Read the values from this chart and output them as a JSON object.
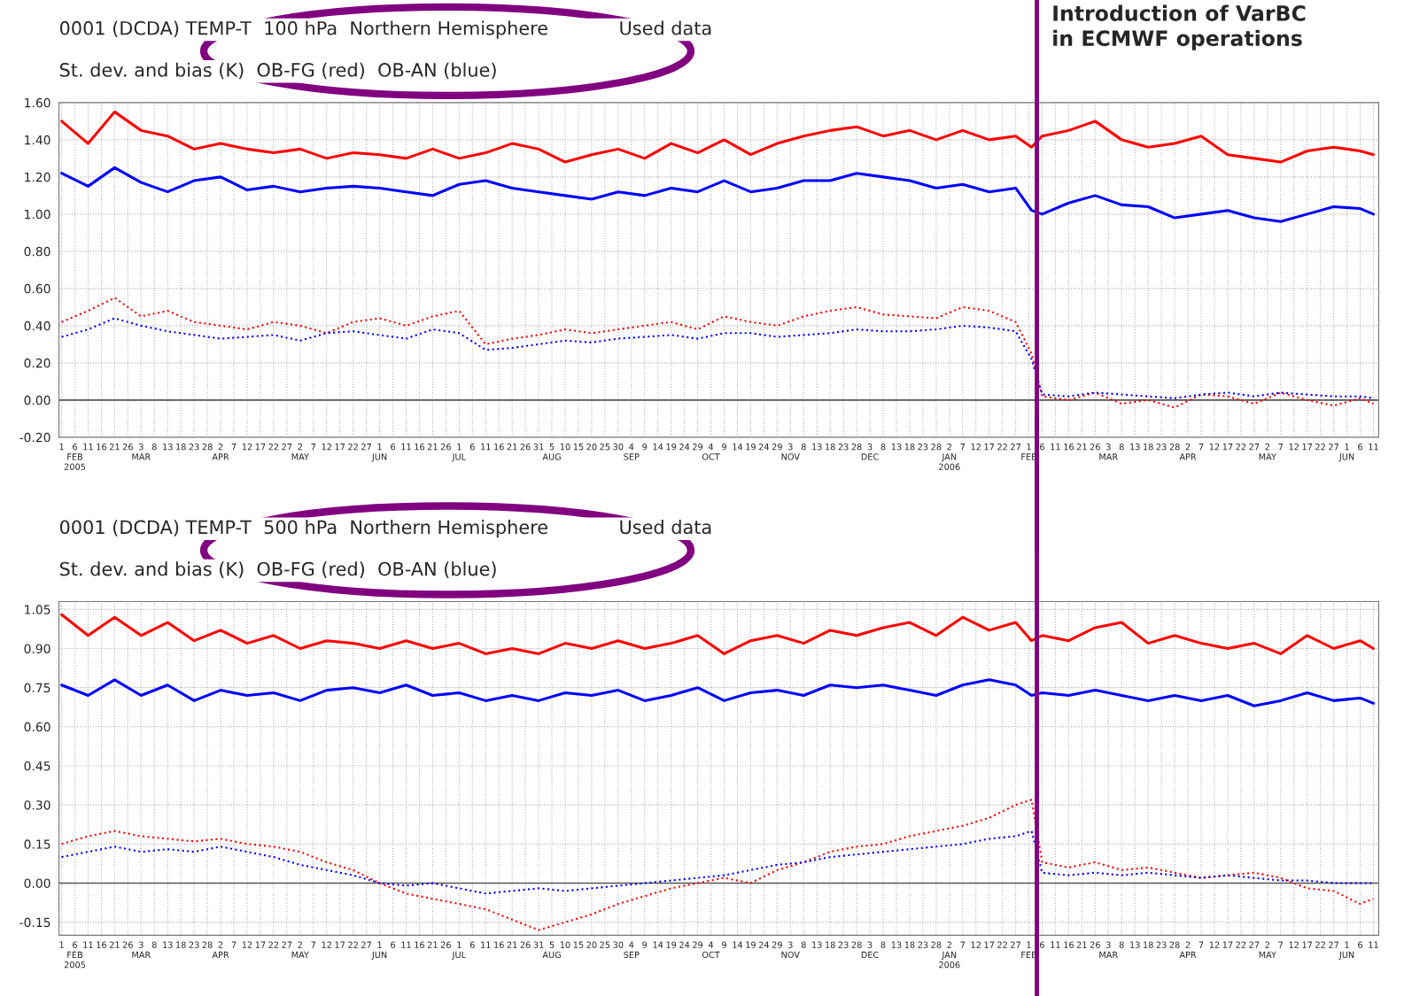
{
  "chart_data": [
    {
      "type": "line",
      "title": "0001 (DCDA) TEMP-T  100 hPa  Northern Hemisphere            Used data",
      "subtitle": "St. dev. and bias (K)  OB-FG (red)  OB-AN (blue)",
      "x": [
        "2005-02-01",
        "2005-02-11",
        "2005-02-21",
        "2005-03-03",
        "2005-03-13",
        "2005-03-23",
        "2005-04-02",
        "2005-04-12",
        "2005-04-22",
        "2005-05-02",
        "2005-05-12",
        "2005-05-22",
        "2005-06-01",
        "2005-06-11",
        "2005-06-21",
        "2005-07-01",
        "2005-07-11",
        "2005-07-21",
        "2005-07-31",
        "2005-08-10",
        "2005-08-20",
        "2005-08-30",
        "2005-09-09",
        "2005-09-19",
        "2005-09-29",
        "2005-10-09",
        "2005-10-19",
        "2005-10-29",
        "2005-11-08",
        "2005-11-18",
        "2005-11-28",
        "2005-12-08",
        "2005-12-18",
        "2005-12-28",
        "2006-01-07",
        "2006-01-17",
        "2006-01-27",
        "2006-02-02",
        "2006-02-06",
        "2006-02-16",
        "2006-02-26",
        "2006-03-08",
        "2006-03-18",
        "2006-03-28",
        "2006-04-07",
        "2006-04-17",
        "2006-04-27",
        "2006-05-07",
        "2006-05-17",
        "2006-05-27",
        "2006-06-06",
        "2006-06-11"
      ],
      "series": [
        {
          "color": "#ff0000",
          "line_style": "solid",
          "values": [
            1.5,
            1.38,
            1.55,
            1.45,
            1.42,
            1.35,
            1.38,
            1.35,
            1.33,
            1.35,
            1.3,
            1.33,
            1.32,
            1.3,
            1.35,
            1.3,
            1.33,
            1.38,
            1.35,
            1.28,
            1.32,
            1.35,
            1.3,
            1.38,
            1.33,
            1.4,
            1.32,
            1.38,
            1.42,
            1.45,
            1.47,
            1.42,
            1.45,
            1.4,
            1.45,
            1.4,
            1.42,
            1.36,
            1.42,
            1.45,
            1.5,
            1.4,
            1.36,
            1.38,
            1.42,
            1.32,
            1.3,
            1.28,
            1.34,
            1.36,
            1.34,
            1.32
          ]
        },
        {
          "color": "#0000ff",
          "line_style": "solid",
          "values": [
            1.22,
            1.15,
            1.25,
            1.17,
            1.12,
            1.18,
            1.2,
            1.13,
            1.15,
            1.12,
            1.14,
            1.15,
            1.14,
            1.12,
            1.1,
            1.16,
            1.18,
            1.14,
            1.12,
            1.1,
            1.08,
            1.12,
            1.1,
            1.14,
            1.12,
            1.18,
            1.12,
            1.14,
            1.18,
            1.18,
            1.22,
            1.2,
            1.18,
            1.14,
            1.16,
            1.12,
            1.14,
            1.02,
            1.0,
            1.06,
            1.1,
            1.05,
            1.04,
            0.98,
            1.0,
            1.02,
            0.98,
            0.96,
            1.0,
            1.04,
            1.03,
            1.0
          ]
        },
        {
          "color": "#ff0000",
          "line_style": "dotted",
          "values": [
            0.42,
            0.48,
            0.55,
            0.45,
            0.48,
            0.42,
            0.4,
            0.38,
            0.42,
            0.4,
            0.36,
            0.42,
            0.44,
            0.4,
            0.45,
            0.48,
            0.3,
            0.33,
            0.35,
            0.38,
            0.36,
            0.38,
            0.4,
            0.42,
            0.38,
            0.45,
            0.42,
            0.4,
            0.45,
            0.48,
            0.5,
            0.46,
            0.45,
            0.44,
            0.5,
            0.48,
            0.42,
            0.25,
            0.02,
            0.0,
            0.04,
            -0.02,
            0.0,
            -0.04,
            0.03,
            0.02,
            -0.02,
            0.04,
            0.0,
            -0.03,
            0.01,
            -0.02
          ]
        },
        {
          "color": "#0000ff",
          "line_style": "dotted",
          "values": [
            0.34,
            0.38,
            0.44,
            0.4,
            0.37,
            0.35,
            0.33,
            0.34,
            0.35,
            0.32,
            0.36,
            0.37,
            0.35,
            0.33,
            0.38,
            0.36,
            0.27,
            0.28,
            0.3,
            0.32,
            0.31,
            0.33,
            0.34,
            0.35,
            0.33,
            0.36,
            0.36,
            0.34,
            0.35,
            0.36,
            0.38,
            0.37,
            0.37,
            0.38,
            0.4,
            0.39,
            0.37,
            0.22,
            0.03,
            0.02,
            0.04,
            0.03,
            0.02,
            0.01,
            0.03,
            0.04,
            0.02,
            0.04,
            0.03,
            0.02,
            0.02,
            0.01
          ]
        }
      ],
      "xlim": [
        "2005-01-31",
        "2006-06-13"
      ],
      "xticks": [
        {
          "value": "2005-02-01",
          "label": "1"
        },
        {
          "value": "2005-02-06",
          "label": "6\nFEB\n2005"
        },
        {
          "value": "2005-02-11",
          "label": "11"
        },
        {
          "value": "2005-02-16",
          "label": "16"
        },
        {
          "value": "2005-02-21",
          "label": "21"
        },
        {
          "value": "2005-02-26",
          "label": "26"
        },
        {
          "value": "2005-03-03",
          "label": "3\nMAR"
        },
        {
          "value": "2005-03-08",
          "label": "8"
        },
        {
          "value": "2005-03-13",
          "label": "13"
        },
        {
          "value": "2005-03-18",
          "label": "18"
        },
        {
          "value": "2005-03-23",
          "label": "23"
        },
        {
          "value": "2005-03-28",
          "label": "28"
        },
        {
          "value": "2005-04-02",
          "label": "2\nAPR"
        },
        {
          "value": "2005-04-07",
          "label": "7"
        },
        {
          "value": "2005-04-12",
          "label": "12"
        },
        {
          "value": "2005-04-17",
          "label": "17"
        },
        {
          "value": "2005-04-22",
          "label": "22"
        },
        {
          "value": "2005-04-27",
          "label": "27"
        },
        {
          "value": "2005-05-02",
          "label": "2\nMAY"
        },
        {
          "value": "2005-05-07",
          "label": "7"
        },
        {
          "value": "2005-05-12",
          "label": "12"
        },
        {
          "value": "2005-05-17",
          "label": "17"
        },
        {
          "value": "2005-05-22",
          "label": "22"
        },
        {
          "value": "2005-05-27",
          "label": "27"
        },
        {
          "value": "2005-06-01",
          "label": "1\nJUN"
        },
        {
          "value": "2005-06-06",
          "label": "6"
        },
        {
          "value": "2005-06-11",
          "label": "11"
        },
        {
          "value": "2005-06-16",
          "label": "16"
        },
        {
          "value": "2005-06-21",
          "label": "21"
        },
        {
          "value": "2005-06-26",
          "label": "26"
        },
        {
          "value": "2005-07-01",
          "label": "1\nJUL"
        },
        {
          "value": "2005-07-06",
          "label": "6"
        },
        {
          "value": "2005-07-11",
          "label": "11"
        },
        {
          "value": "2005-07-16",
          "label": "16"
        },
        {
          "value": "2005-07-21",
          "label": "21"
        },
        {
          "value": "2005-07-26",
          "label": "26"
        },
        {
          "value": "2005-07-31",
          "label": "31"
        },
        {
          "value": "2005-08-05",
          "label": "5\nAUG"
        },
        {
          "value": "2005-08-10",
          "label": "10"
        },
        {
          "value": "2005-08-15",
          "label": "15"
        },
        {
          "value": "2005-08-20",
          "label": "20"
        },
        {
          "value": "2005-08-25",
          "label": "25"
        },
        {
          "value": "2005-08-30",
          "label": "30"
        },
        {
          "value": "2005-09-04",
          "label": "4\nSEP"
        },
        {
          "value": "2005-09-09",
          "label": "9"
        },
        {
          "value": "2005-09-14",
          "label": "14"
        },
        {
          "value": "2005-09-19",
          "label": "19"
        },
        {
          "value": "2005-09-24",
          "label": "24"
        },
        {
          "value": "2005-09-29",
          "label": "29"
        },
        {
          "value": "2005-10-04",
          "label": "4\nOCT"
        },
        {
          "value": "2005-10-09",
          "label": "9"
        },
        {
          "value": "2005-10-14",
          "label": "14"
        },
        {
          "value": "2005-10-19",
          "label": "19"
        },
        {
          "value": "2005-10-24",
          "label": "24"
        },
        {
          "value": "2005-10-29",
          "label": "29"
        },
        {
          "value": "2005-11-03",
          "label": "3\nNOV"
        },
        {
          "value": "2005-11-08",
          "label": "8"
        },
        {
          "value": "2005-11-13",
          "label": "13"
        },
        {
          "value": "2005-11-18",
          "label": "18"
        },
        {
          "value": "2005-11-23",
          "label": "23"
        },
        {
          "value": "2005-11-28",
          "label": "28"
        },
        {
          "value": "2005-12-03",
          "label": "3\nDEC"
        },
        {
          "value": "2005-12-08",
          "label": "8"
        },
        {
          "value": "2005-12-13",
          "label": "13"
        },
        {
          "value": "2005-12-18",
          "label": "18"
        },
        {
          "value": "2005-12-23",
          "label": "23"
        },
        {
          "value": "2005-12-28",
          "label": "28"
        },
        {
          "value": "2006-01-02",
          "label": "2\nJAN\n2006"
        },
        {
          "value": "2006-01-07",
          "label": "7"
        },
        {
          "value": "2006-01-12",
          "label": "12"
        },
        {
          "value": "2006-01-17",
          "label": "17"
        },
        {
          "value": "2006-01-22",
          "label": "22"
        },
        {
          "value": "2006-01-27",
          "label": "27"
        },
        {
          "value": "2006-02-01",
          "label": "1\nFEB"
        },
        {
          "value": "2006-02-06",
          "label": "6"
        },
        {
          "value": "2006-02-11",
          "label": "11"
        },
        {
          "value": "2006-02-16",
          "label": "16"
        },
        {
          "value": "2006-02-21",
          "label": "21"
        },
        {
          "value": "2006-02-26",
          "label": "26"
        },
        {
          "value": "2006-03-03",
          "label": "3\nMAR"
        },
        {
          "value": "2006-03-08",
          "label": "8"
        },
        {
          "value": "2006-03-13",
          "label": "13"
        },
        {
          "value": "2006-03-18",
          "label": "18"
        },
        {
          "value": "2006-03-23",
          "label": "23"
        },
        {
          "value": "2006-03-28",
          "label": "28"
        },
        {
          "value": "2006-04-02",
          "label": "2\nAPR"
        },
        {
          "value": "2006-04-07",
          "label": "7"
        },
        {
          "value": "2006-04-12",
          "label": "12"
        },
        {
          "value": "2006-04-17",
          "label": "17"
        },
        {
          "value": "2006-04-22",
          "label": "22"
        },
        {
          "value": "2006-04-27",
          "label": "27"
        },
        {
          "value": "2006-05-02",
          "label": "2\nMAY"
        },
        {
          "value": "2006-05-07",
          "label": "7"
        },
        {
          "value": "2006-05-12",
          "label": "12"
        },
        {
          "value": "2006-05-17",
          "label": "17"
        },
        {
          "value": "2006-05-22",
          "label": "22"
        },
        {
          "value": "2006-05-27",
          "label": "27"
        },
        {
          "value": "2006-06-01",
          "label": "1\nJUN"
        },
        {
          "value": "2006-06-06",
          "label": "6"
        },
        {
          "value": "2006-06-11",
          "label": "11"
        }
      ],
      "ylim": [
        -0.2,
        1.6
      ],
      "yticks": [
        {
          "value": -0.2,
          "label": "-0.20"
        },
        {
          "value": 0,
          "label": "0.00"
        },
        {
          "value": 0.2,
          "label": "0.20"
        },
        {
          "value": 0.4,
          "label": "0.40"
        },
        {
          "value": 0.6,
          "label": "0.60"
        },
        {
          "value": 0.8,
          "label": "0.80"
        },
        {
          "value": 1.0,
          "label": "1.00"
        },
        {
          "value": 1.2,
          "label": "1.20"
        },
        {
          "value": 1.4,
          "label": "1.40"
        },
        {
          "value": 1.6,
          "label": "1.60"
        }
      ],
      "grid": true,
      "ref_lines": [
        {
          "axis": "y",
          "value": 0,
          "color": "#555555",
          "line_style": "solid"
        },
        {
          "axis": "x",
          "value": "2006-02-04",
          "label": "Introduction of VarBC\nin ECMWF operations",
          "color": "#800080",
          "line_style": "solid"
        }
      ]
    },
    {
      "type": "line",
      "title": "0001 (DCDA) TEMP-T  500 hPa  Northern Hemisphere            Used data",
      "subtitle": "St. dev. and bias (K)  OB-FG (red)  OB-AN (blue)",
      "x": [
        "2005-02-01",
        "2005-02-11",
        "2005-02-21",
        "2005-03-03",
        "2005-03-13",
        "2005-03-23",
        "2005-04-02",
        "2005-04-12",
        "2005-04-22",
        "2005-05-02",
        "2005-05-12",
        "2005-05-22",
        "2005-06-01",
        "2005-06-11",
        "2005-06-21",
        "2005-07-01",
        "2005-07-11",
        "2005-07-21",
        "2005-07-31",
        "2005-08-10",
        "2005-08-20",
        "2005-08-30",
        "2005-09-09",
        "2005-09-19",
        "2005-09-29",
        "2005-10-09",
        "2005-10-19",
        "2005-10-29",
        "2005-11-08",
        "2005-11-18",
        "2005-11-28",
        "2005-12-08",
        "2005-12-18",
        "2005-12-28",
        "2006-01-07",
        "2006-01-17",
        "2006-01-27",
        "2006-02-02",
        "2006-02-06",
        "2006-02-16",
        "2006-02-26",
        "2006-03-08",
        "2006-03-18",
        "2006-03-28",
        "2006-04-07",
        "2006-04-17",
        "2006-04-27",
        "2006-05-07",
        "2006-05-17",
        "2006-05-27",
        "2006-06-06",
        "2006-06-11"
      ],
      "series": [
        {
          "color": "#ff0000",
          "line_style": "solid",
          "values": [
            1.03,
            0.95,
            1.02,
            0.95,
            1.0,
            0.93,
            0.97,
            0.92,
            0.95,
            0.9,
            0.93,
            0.92,
            0.9,
            0.93,
            0.9,
            0.92,
            0.88,
            0.9,
            0.88,
            0.92,
            0.9,
            0.93,
            0.9,
            0.92,
            0.95,
            0.88,
            0.93,
            0.95,
            0.92,
            0.97,
            0.95,
            0.98,
            1.0,
            0.95,
            1.02,
            0.97,
            1.0,
            0.93,
            0.95,
            0.93,
            0.98,
            1.0,
            0.92,
            0.95,
            0.92,
            0.9,
            0.92,
            0.88,
            0.95,
            0.9,
            0.93,
            0.9
          ]
        },
        {
          "color": "#0000ff",
          "line_style": "solid",
          "values": [
            0.76,
            0.72,
            0.78,
            0.72,
            0.76,
            0.7,
            0.74,
            0.72,
            0.73,
            0.7,
            0.74,
            0.75,
            0.73,
            0.76,
            0.72,
            0.73,
            0.7,
            0.72,
            0.7,
            0.73,
            0.72,
            0.74,
            0.7,
            0.72,
            0.75,
            0.7,
            0.73,
            0.74,
            0.72,
            0.76,
            0.75,
            0.76,
            0.74,
            0.72,
            0.76,
            0.78,
            0.76,
            0.72,
            0.73,
            0.72,
            0.74,
            0.72,
            0.7,
            0.72,
            0.7,
            0.72,
            0.68,
            0.7,
            0.73,
            0.7,
            0.71,
            0.69
          ]
        },
        {
          "color": "#ff0000",
          "line_style": "dotted",
          "values": [
            0.15,
            0.18,
            0.2,
            0.18,
            0.17,
            0.16,
            0.17,
            0.15,
            0.14,
            0.12,
            0.08,
            0.05,
            0.0,
            -0.04,
            -0.06,
            -0.08,
            -0.1,
            -0.14,
            -0.18,
            -0.15,
            -0.12,
            -0.08,
            -0.05,
            -0.02,
            0.0,
            0.02,
            0.0,
            0.05,
            0.08,
            0.12,
            0.14,
            0.15,
            0.18,
            0.2,
            0.22,
            0.25,
            0.3,
            0.32,
            0.08,
            0.06,
            0.08,
            0.05,
            0.06,
            0.04,
            0.02,
            0.03,
            0.04,
            0.02,
            -0.02,
            -0.03,
            -0.08,
            -0.06
          ]
        },
        {
          "color": "#0000ff",
          "line_style": "dotted",
          "values": [
            0.1,
            0.12,
            0.14,
            0.12,
            0.13,
            0.12,
            0.14,
            0.12,
            0.1,
            0.07,
            0.05,
            0.03,
            0.0,
            -0.01,
            0.0,
            -0.02,
            -0.04,
            -0.03,
            -0.02,
            -0.03,
            -0.02,
            -0.01,
            0.0,
            0.01,
            0.02,
            0.03,
            0.05,
            0.07,
            0.08,
            0.1,
            0.11,
            0.12,
            0.13,
            0.14,
            0.15,
            0.17,
            0.18,
            0.2,
            0.04,
            0.03,
            0.04,
            0.03,
            0.04,
            0.03,
            0.02,
            0.03,
            0.02,
            0.01,
            0.01,
            0.0,
            0.0,
            0.0
          ]
        }
      ],
      "xlim": [
        "2005-01-31",
        "2006-06-13"
      ],
      "xticks": [
        {
          "value": "2005-02-01",
          "label": "1"
        },
        {
          "value": "2005-02-06",
          "label": "6\nFEB\n2005"
        },
        {
          "value": "2005-02-11",
          "label": "11"
        },
        {
          "value": "2005-02-16",
          "label": "16"
        },
        {
          "value": "2005-02-21",
          "label": "21"
        },
        {
          "value": "2005-02-26",
          "label": "26"
        },
        {
          "value": "2005-03-03",
          "label": "3\nMAR"
        },
        {
          "value": "2005-03-08",
          "label": "8"
        },
        {
          "value": "2005-03-13",
          "label": "13"
        },
        {
          "value": "2005-03-18",
          "label": "18"
        },
        {
          "value": "2005-03-23",
          "label": "23"
        },
        {
          "value": "2005-03-28",
          "label": "28"
        },
        {
          "value": "2005-04-02",
          "label": "2\nAPR"
        },
        {
          "value": "2005-04-07",
          "label": "7"
        },
        {
          "value": "2005-04-12",
          "label": "12"
        },
        {
          "value": "2005-04-17",
          "label": "17"
        },
        {
          "value": "2005-04-22",
          "label": "22"
        },
        {
          "value": "2005-04-27",
          "label": "27"
        },
        {
          "value": "2005-05-02",
          "label": "2\nMAY"
        },
        {
          "value": "2005-05-07",
          "label": "7"
        },
        {
          "value": "2005-05-12",
          "label": "12"
        },
        {
          "value": "2005-05-17",
          "label": "17"
        },
        {
          "value": "2005-05-22",
          "label": "22"
        },
        {
          "value": "2005-05-27",
          "label": "27"
        },
        {
          "value": "2005-06-01",
          "label": "1\nJUN"
        },
        {
          "value": "2005-06-06",
          "label": "6"
        },
        {
          "value": "2005-06-11",
          "label": "11"
        },
        {
          "value": "2005-06-16",
          "label": "16"
        },
        {
          "value": "2005-06-21",
          "label": "21"
        },
        {
          "value": "2005-06-26",
          "label": "26"
        },
        {
          "value": "2005-07-01",
          "label": "1\nJUL"
        },
        {
          "value": "2005-07-06",
          "label": "6"
        },
        {
          "value": "2005-07-11",
          "label": "11"
        },
        {
          "value": "2005-07-16",
          "label": "16"
        },
        {
          "value": "2005-07-21",
          "label": "21"
        },
        {
          "value": "2005-07-26",
          "label": "26"
        },
        {
          "value": "2005-07-31",
          "label": "31"
        },
        {
          "value": "2005-08-05",
          "label": "5\nAUG"
        },
        {
          "value": "2005-08-10",
          "label": "10"
        },
        {
          "value": "2005-08-15",
          "label": "15"
        },
        {
          "value": "2005-08-20",
          "label": "20"
        },
        {
          "value": "2005-08-25",
          "label": "25"
        },
        {
          "value": "2005-08-30",
          "label": "30"
        },
        {
          "value": "2005-09-04",
          "label": "4\nSEP"
        },
        {
          "value": "2005-09-09",
          "label": "9"
        },
        {
          "value": "2005-09-14",
          "label": "14"
        },
        {
          "value": "2005-09-19",
          "label": "19"
        },
        {
          "value": "2005-09-24",
          "label": "24"
        },
        {
          "value": "2005-09-29",
          "label": "29"
        },
        {
          "value": "2005-10-04",
          "label": "4\nOCT"
        },
        {
          "value": "2005-10-09",
          "label": "9"
        },
        {
          "value": "2005-10-14",
          "label": "14"
        },
        {
          "value": "2005-10-19",
          "label": "19"
        },
        {
          "value": "2005-10-24",
          "label": "24"
        },
        {
          "value": "2005-10-29",
          "label": "29"
        },
        {
          "value": "2005-11-03",
          "label": "3\nNOV"
        },
        {
          "value": "2005-11-08",
          "label": "8"
        },
        {
          "value": "2005-11-13",
          "label": "13"
        },
        {
          "value": "2005-11-18",
          "label": "18"
        },
        {
          "value": "2005-11-23",
          "label": "23"
        },
        {
          "value": "2005-11-28",
          "label": "28"
        },
        {
          "value": "2005-12-03",
          "label": "3\nDEC"
        },
        {
          "value": "2005-12-08",
          "label": "8"
        },
        {
          "value": "2005-12-13",
          "label": "13"
        },
        {
          "value": "2005-12-18",
          "label": "18"
        },
        {
          "value": "2005-12-23",
          "label": "23"
        },
        {
          "value": "2005-12-28",
          "label": "28"
        },
        {
          "value": "2006-01-02",
          "label": "2\nJAN\n2006"
        },
        {
          "value": "2006-01-07",
          "label": "7"
        },
        {
          "value": "2006-01-12",
          "label": "12"
        },
        {
          "value": "2006-01-17",
          "label": "17"
        },
        {
          "value": "2006-01-22",
          "label": "22"
        },
        {
          "value": "2006-01-27",
          "label": "27"
        },
        {
          "value": "2006-02-01",
          "label": "1\nFEB"
        },
        {
          "value": "2006-02-06",
          "label": "6"
        },
        {
          "value": "2006-02-11",
          "label": "11"
        },
        {
          "value": "2006-02-16",
          "label": "16"
        },
        {
          "value": "2006-02-21",
          "label": "21"
        },
        {
          "value": "2006-02-26",
          "label": "26"
        },
        {
          "value": "2006-03-03",
          "label": "3\nMAR"
        },
        {
          "value": "2006-03-08",
          "label": "8"
        },
        {
          "value": "2006-03-13",
          "label": "13"
        },
        {
          "value": "2006-03-18",
          "label": "18"
        },
        {
          "value": "2006-03-23",
          "label": "23"
        },
        {
          "value": "2006-03-28",
          "label": "28"
        },
        {
          "value": "2006-04-02",
          "label": "2\nAPR"
        },
        {
          "value": "2006-04-07",
          "label": "7"
        },
        {
          "value": "2006-04-12",
          "label": "12"
        },
        {
          "value": "2006-04-17",
          "label": "17"
        },
        {
          "value": "2006-04-22",
          "label": "22"
        },
        {
          "value": "2006-04-27",
          "label": "27"
        },
        {
          "value": "2006-05-02",
          "label": "2\nMAY"
        },
        {
          "value": "2006-05-07",
          "label": "7"
        },
        {
          "value": "2006-05-12",
          "label": "12"
        },
        {
          "value": "2006-05-17",
          "label": "17"
        },
        {
          "value": "2006-05-22",
          "label": "22"
        },
        {
          "value": "2006-05-27",
          "label": "27"
        },
        {
          "value": "2006-06-01",
          "label": "1\nJUN"
        },
        {
          "value": "2006-06-06",
          "label": "6"
        },
        {
          "value": "2006-06-11",
          "label": "11"
        }
      ],
      "ylim": [
        -0.2,
        1.08
      ],
      "yticks": [
        {
          "value": -0.15,
          "label": "-0.15"
        },
        {
          "value": 0,
          "label": "0.00"
        },
        {
          "value": 0.15,
          "label": "0.15"
        },
        {
          "value": 0.3,
          "label": "0.30"
        },
        {
          "value": 0.45,
          "label": "0.45"
        },
        {
          "value": 0.6,
          "label": "0.60"
        },
        {
          "value": 0.75,
          "label": "0.75"
        },
        {
          "value": 0.9,
          "label": "0.90"
        },
        {
          "value": 1.05,
          "label": "1.05"
        }
      ],
      "grid": true,
      "ref_lines": [
        {
          "axis": "y",
          "value": 0,
          "color": "#555555",
          "line_style": "solid"
        },
        {
          "axis": "x",
          "value": "2006-02-04",
          "color": "#800080",
          "line_style": "solid"
        }
      ]
    }
  ]
}
